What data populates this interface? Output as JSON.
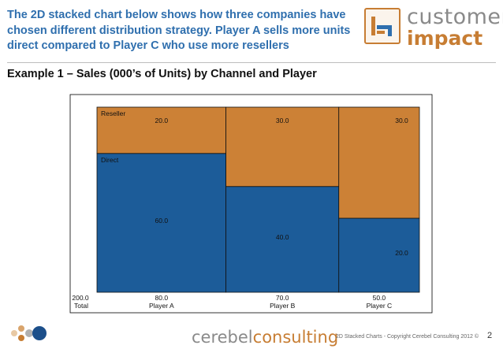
{
  "header": {
    "headline": "The 2D stacked chart below shows how three companies have chosen different distribution strategy. Player A sells more units direct compared to Player C who use more resellers",
    "subtitle": "Example 1 – Sales (000’s of Units) by Channel and Player"
  },
  "logo": {
    "word1": "customer",
    "word2": "impact"
  },
  "chart_data": {
    "type": "bar",
    "subtype": "marimekko",
    "categories": [
      "Player A",
      "Player B",
      "Player C"
    ],
    "totals": [
      80.0,
      70.0,
      50.0
    ],
    "total_labels": [
      "80.0",
      "70.0",
      "50.0"
    ],
    "grand_total": 200.0,
    "grand_total_label": "200.0",
    "grand_total_caption": "Total",
    "series": [
      {
        "name": "Direct",
        "values": [
          60.0,
          40.0,
          20.0
        ],
        "labels": [
          "60.0",
          "40.0",
          "20.0"
        ],
        "color": "#1c5c99"
      },
      {
        "name": "Reseller",
        "values": [
          20.0,
          30.0,
          30.0
        ],
        "labels": [
          "20.0",
          "30.0",
          "30.0"
        ],
        "color": "#cc8136"
      }
    ],
    "legend_placement": "inside-left",
    "grid": false
  },
  "footer": {
    "brand1": "cerebel",
    "brand2": "consulting",
    "copyright": "2D Stacked Charts - Copyright Cerebel Consulting 2012 ©",
    "page": "2"
  }
}
